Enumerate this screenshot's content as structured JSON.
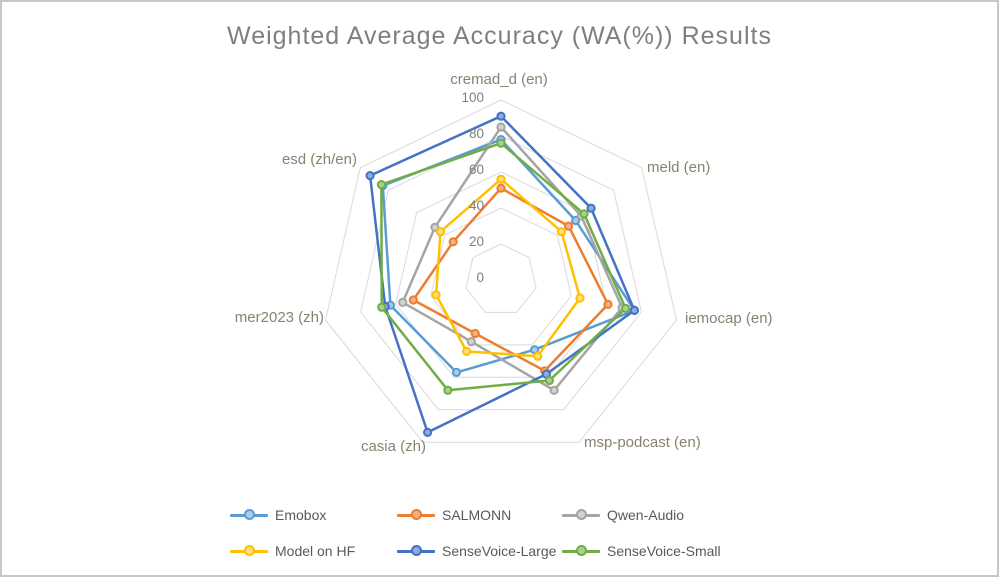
{
  "title": "Weighted Average Accuracy (WA(%)) Results",
  "chart_data": {
    "type": "radar",
    "categories": [
      "cremad_d (en)",
      "meld (en)",
      "iemocap (en)",
      "msp-podcast (en)",
      "casia (zh)",
      "mer2023 (zh)",
      "esd  (zh/en)"
    ],
    "series": [
      {
        "name": "Emobox",
        "color": "#5B9BD5",
        "marker_fill": "#A8CCEA",
        "values": [
          78,
          53,
          76,
          43,
          57,
          63,
          84
        ]
      },
      {
        "name": "SALMONN",
        "color": "#ED7D31",
        "marker_fill": "#F5B183",
        "values": [
          51,
          48,
          61,
          56,
          33,
          50,
          34
        ]
      },
      {
        "name": "Qwen-Audio",
        "color": "#A5A5A5",
        "marker_fill": "#D2D2D2",
        "values": [
          85,
          57,
          69,
          68,
          38,
          56,
          47
        ]
      },
      {
        "name": "Model on HF",
        "color": "#FFC000",
        "marker_fill": "#FFDF80",
        "values": [
          56,
          43,
          45,
          47,
          44,
          37,
          43
        ]
      },
      {
        "name": "SenseVoice-Large",
        "color": "#4472C4",
        "marker_fill": "#8FAADC",
        "values": [
          91,
          64,
          76,
          58,
          94,
          66,
          93
        ]
      },
      {
        "name": "SenseVoice-Small",
        "color": "#70AD47",
        "marker_fill": "#A9D18E",
        "values": [
          76,
          59,
          71,
          62,
          68,
          68,
          85
        ]
      }
    ],
    "radial_axis": {
      "min": 0,
      "max": 100,
      "ticks": [
        0,
        20,
        40,
        60,
        80,
        100
      ]
    },
    "grid": true,
    "legend_position": "bottom",
    "gridline_color": "#D9D9D9"
  }
}
